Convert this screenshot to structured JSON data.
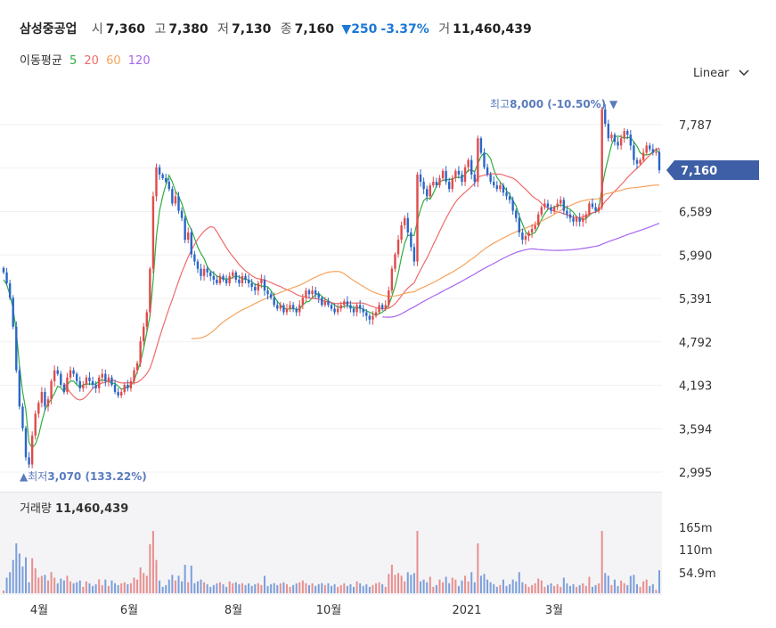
{
  "header": {
    "stock_name": "삼성중공업",
    "open_label": "시",
    "open_value": "7,360",
    "high_label": "고",
    "high_value": "7,380",
    "low_label": "저",
    "low_value": "7,130",
    "close_label": "종",
    "close_value": "7,160",
    "change_value": "▼250",
    "change_pct": "-3.37%",
    "volume_label": "거",
    "volume_value": "11,460,439"
  },
  "ma_legend": {
    "title": "이동평균",
    "periods": [
      {
        "label": "5",
        "color": "#2fae3f"
      },
      {
        "label": "20",
        "color": "#f06a6a"
      },
      {
        "label": "60",
        "color": "#f5a35c"
      },
      {
        "label": "120",
        "color": "#a765f0"
      }
    ]
  },
  "scale_select": {
    "value": "Linear",
    "icon": "chevron-down-icon"
  },
  "colors": {
    "up": "#e04b4b",
    "down": "#2b66c8",
    "current_tag": "#3e5fa6",
    "annotation": "#5a7bbd"
  },
  "volume_panel": {
    "label": "거래량",
    "value": "11,460,439",
    "ticks": [
      "165m",
      "110m",
      "54.9m"
    ]
  },
  "chart_data": {
    "type": "candlestick",
    "x_ticks": [
      "4월",
      "6월",
      "8월",
      "10월",
      "2021",
      "3월"
    ],
    "y_ticks": [
      "7,787",
      "7,188",
      "6,589",
      "5,990",
      "5,391",
      "4,792",
      "4,193",
      "3,594",
      "2,995"
    ],
    "ylim": [
      2995,
      8386
    ],
    "current_price": {
      "label": "7,160",
      "value": 7160
    },
    "high_annotation": {
      "prefix": "최고",
      "value": "8,000",
      "pct": "(-10.50%)",
      "marker": "▼",
      "price": 8000
    },
    "low_annotation": {
      "prefix": "최저",
      "value": "3,070",
      "pct": "(133.22%)",
      "marker": "▲",
      "price": 3070
    },
    "closes": [
      5750,
      5600,
      5400,
      5000,
      4400,
      3900,
      3600,
      3200,
      3100,
      3500,
      3800,
      3950,
      4100,
      3900,
      4000,
      4250,
      4400,
      4350,
      4200,
      4100,
      4300,
      4400,
      4350,
      4250,
      4150,
      4200,
      4300,
      4250,
      4200,
      4150,
      4300,
      4350,
      4250,
      4300,
      4200,
      4100,
      4050,
      4100,
      4200,
      4150,
      4250,
      4400,
      4500,
      4800,
      5000,
      5200,
      5800,
      6800,
      7200,
      7100,
      7050,
      7000,
      6900,
      6700,
      6800,
      6600,
      6500,
      6200,
      6300,
      6000,
      5900,
      5800,
      5700,
      5800,
      5750,
      5700,
      5650,
      5600,
      5700,
      5650,
      5600,
      5700,
      5750,
      5650,
      5600,
      5700,
      5650,
      5600,
      5550,
      5500,
      5600,
      5650,
      5500,
      5450,
      5400,
      5300,
      5250,
      5300,
      5200,
      5250,
      5300,
      5250,
      5200,
      5300,
      5400,
      5500,
      5450,
      5500,
      5450,
      5400,
      5300,
      5350,
      5300,
      5250,
      5200,
      5250,
      5300,
      5350,
      5300,
      5250,
      5200,
      5300,
      5250,
      5200,
      5150,
      5100,
      5150,
      5200,
      5300,
      5250,
      5300,
      5500,
      5800,
      6000,
      6200,
      6400,
      6500,
      6300,
      6100,
      5900,
      7100,
      7000,
      6900,
      6800,
      6950,
      7000,
      6950,
      7050,
      7150,
      7000,
      6900,
      7050,
      7150,
      7100,
      7000,
      7200,
      7300,
      7100,
      7000,
      7600,
      7400,
      7200,
      7100,
      7000,
      6950,
      6900,
      6950,
      6850,
      6800,
      6750,
      6600,
      6500,
      6300,
      6200,
      6250,
      6300,
      6350,
      6400,
      6550,
      6650,
      6700,
      6650,
      6600,
      6650,
      6700,
      6750,
      6600,
      6550,
      6500,
      6450,
      6500,
      6450,
      6500,
      6550,
      6700,
      6650,
      6600,
      6650,
      8000,
      7800,
      7600,
      7650,
      7550,
      7500,
      7600,
      7700,
      7650,
      7500,
      7300,
      7250,
      7300,
      7400,
      7500,
      7450,
      7400,
      7410,
      7160
    ],
    "ma5": [
      5650,
      5580,
      5440,
      5250,
      4940,
      4460,
      4100,
      3850,
      3400,
      3330,
      3380,
      3500,
      3690,
      3850,
      3940,
      4000,
      4080,
      4180,
      4160,
      4100,
      4200,
      4250,
      4250,
      4200,
      4170,
      4200,
      4210,
      4210,
      4210,
      4210,
      4250,
      4270,
      4250,
      4250,
      4220,
      4220,
      4180,
      4140,
      4150,
      4170,
      4190,
      4260,
      4380,
      4510,
      4700,
      4920,
      5150,
      5640,
      6240,
      6600,
      6800,
      6960,
      7090,
      7000,
      6870,
      6800,
      6700,
      6560,
      6420,
      6340,
      6220,
      6100,
      6010,
      5940,
      5830,
      5770,
      5740,
      5700,
      5680,
      5660,
      5660,
      5660,
      5680,
      5700,
      5690,
      5660,
      5660,
      5640,
      5620,
      5580,
      5580,
      5560,
      5560,
      5550,
      5500,
      5420,
      5350,
      5300,
      5260,
      5240,
      5250,
      5250,
      5240,
      5240,
      5300,
      5340,
      5350,
      5400,
      5440,
      5460,
      5420,
      5380,
      5360,
      5330,
      5300,
      5270,
      5270,
      5280,
      5290,
      5280,
      5260,
      5260,
      5260,
      5240,
      5220,
      5200,
      5180,
      5160,
      5180,
      5200,
      5240,
      5300,
      5420,
      5560,
      5740,
      5960,
      6150,
      6260,
      6260,
      6260,
      6460,
      6620,
      6740,
      6780,
      6760,
      6840,
      6940,
      7000,
      7020,
      7030,
      7030,
      7040,
      7060,
      7060,
      7060,
      7100,
      7160,
      7160,
      7140,
      7250,
      7350,
      7400,
      7380,
      7320,
      7170,
      7060,
      7000,
      6940,
      6880,
      6820,
      6740,
      6670,
      6530,
      6420,
      6310,
      6260,
      6280,
      6300,
      6380,
      6480,
      6560,
      6620,
      6640,
      6650,
      6670,
      6680,
      6670,
      6640,
      6620,
      6580,
      6520,
      6490,
      6480,
      6490,
      6540,
      6570,
      6580,
      6640,
      6920,
      7150,
      7330,
      7510,
      7620,
      7630,
      7620,
      7600,
      7610,
      7610,
      7550,
      7490,
      7400,
      7370,
      7370,
      7380,
      7410,
      7450,
      7390
    ]
  }
}
